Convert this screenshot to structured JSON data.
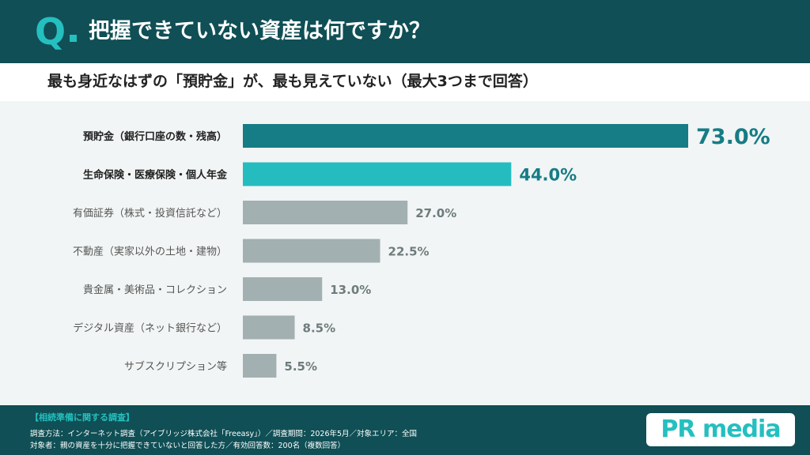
{
  "header": {
    "q_mark": "Q",
    "title": "把握できていない資産は何ですか？"
  },
  "subtitle": "最も身近なはずの「預貯金」が、最も見えていない（最大3つまで回答）",
  "chart_data": {
    "type": "bar",
    "orientation": "horizontal",
    "categories": [
      "預貯金（銀行口座の数・残高）",
      "生命保険・医療保険・個人年金",
      "有価証券（株式・投資信託など）",
      "不動産（実家以外の土地・建物）",
      "貴金属・美術品・コレクション",
      "デジタル資産（ネット銀行など）",
      "サブスクリプション等"
    ],
    "values": [
      73.0,
      44.0,
      27.0,
      22.5,
      13.0,
      8.5,
      5.5
    ],
    "value_labels": [
      "73.0%",
      "44.0%",
      "27.0%",
      "22.5%",
      "13.0%",
      "8.5%",
      "5.5%"
    ],
    "colors": [
      "#167c85",
      "#25bcc0",
      "#a3b0b1",
      "#a3b0b1",
      "#a3b0b1",
      "#a3b0b1",
      "#a3b0b1"
    ],
    "label_colors": [
      "#167c85",
      "#167c85",
      "#6f7b7c",
      "#6f7b7c",
      "#6f7b7c",
      "#6f7b7c",
      "#6f7b7c"
    ],
    "xlim": [
      0,
      73.0
    ],
    "grid": false,
    "title": "",
    "xlabel": "",
    "ylabel": ""
  },
  "footer": {
    "title": "【相続準備に関する調査】",
    "line1": "調査方法：インターネット調査（アイブリッジ株式会社「Freeasy」）／調査期間：2026年5月／対象エリア：全国",
    "line2": "対象者：親の資産を十分に把握できていないと回答した方／有効回答数：200名（複数回答）"
  },
  "logo": {
    "text": "PR media"
  }
}
